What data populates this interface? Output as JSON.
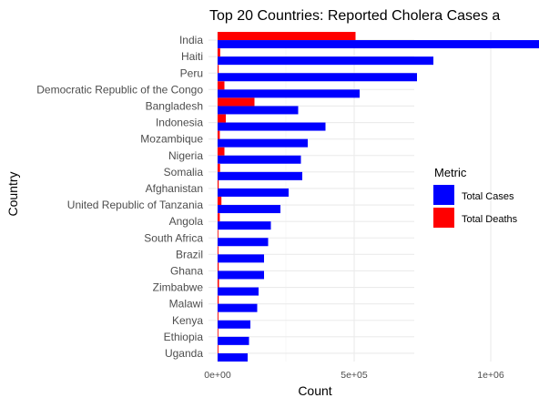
{
  "chart_data": {
    "type": "bar",
    "orientation": "horizontal",
    "title": "Top 20 Countries: Reported Cholera Cases a",
    "xlabel": "Count",
    "ylabel": "Country",
    "xlim": [
      0,
      1420000
    ],
    "x_ticks": [
      0,
      500000,
      1000000
    ],
    "x_tick_labels": [
      "0e+00",
      "5e+05",
      "1e+06"
    ],
    "grid": true,
    "legend_position": "right",
    "legend_title": "Metric",
    "categories": [
      "India",
      "Haiti",
      "Peru",
      "Democratic Republic of the Congo",
      "Bangladesh",
      "Indonesia",
      "Mozambique",
      "Nigeria",
      "Somalia",
      "Afghanistan",
      "United Republic of Tanzania",
      "Angola",
      "South Africa",
      "Brazil",
      "Ghana",
      "Zimbabwe",
      "Malawi",
      "Kenya",
      "Ethiopia",
      "Uganda"
    ],
    "series": [
      {
        "name": "Total Cases",
        "color": "#0000ff",
        "values": [
          1360000,
          790000,
          730000,
          520000,
          295000,
          395000,
          330000,
          305000,
          310000,
          260000,
          230000,
          195000,
          185000,
          170000,
          170000,
          150000,
          145000,
          120000,
          115000,
          110000
        ]
      },
      {
        "name": "Total Deaths",
        "color": "#ff0000",
        "values": [
          505000,
          9500,
          4000,
          25000,
          135000,
          30000,
          8000,
          25000,
          9000,
          4000,
          14000,
          8000,
          1000,
          3000,
          4000,
          5000,
          4000,
          3000,
          2000,
          3000
        ]
      }
    ]
  }
}
